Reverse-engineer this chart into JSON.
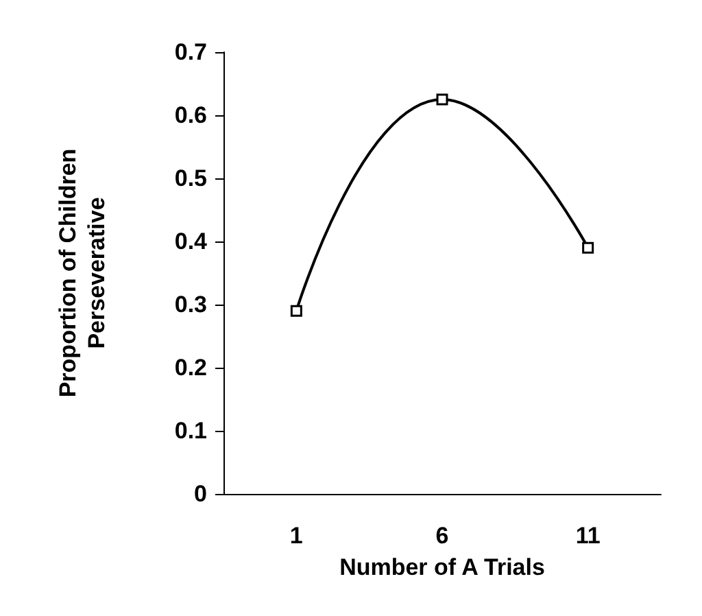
{
  "chart_data": {
    "type": "line",
    "xlabel": "Number of A Trials",
    "ylabel": "Proportion of Children Perseverative",
    "categories": [
      "1",
      "6",
      "11"
    ],
    "series": [
      {
        "color": "#000000",
        "values": [
          0.29,
          0.625,
          0.39
        ]
      }
    ],
    "ylim": [
      0,
      0.7
    ],
    "yticks": [
      0,
      0.1,
      0.2,
      0.3,
      0.4,
      0.5,
      0.6,
      0.7
    ],
    "grid": false,
    "marker": "square",
    "line_style": "solid"
  }
}
